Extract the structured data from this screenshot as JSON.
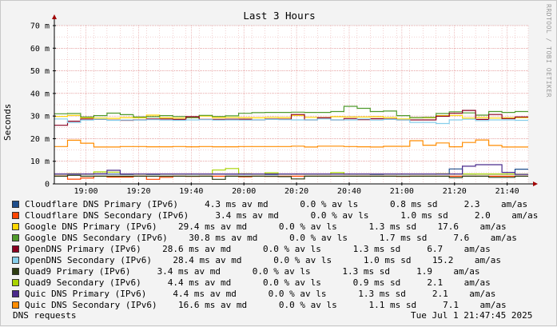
{
  "chart_data": {
    "type": "line",
    "title": "Last 3 Hours",
    "ylabel": "Seconds",
    "watermark": "RRDTOOL / TOBI OETIKER",
    "ylim": [
      0,
      0.07
    ],
    "yticks": [
      {
        "value": 0.07,
        "label": "70 m"
      },
      {
        "value": 0.06,
        "label": "60 m"
      },
      {
        "value": 0.05,
        "label": "50 m"
      },
      {
        "value": 0.04,
        "label": "40 m"
      },
      {
        "value": 0.03,
        "label": "30 m"
      },
      {
        "value": 0.02,
        "label": "20 m"
      },
      {
        "value": 0.01,
        "label": "10 m"
      },
      {
        "value": 0.0,
        "label": "0"
      }
    ],
    "xlim": [
      "18:48",
      "21:48"
    ],
    "xticks": [
      "19:00",
      "19:20",
      "19:40",
      "20:00",
      "20:20",
      "20:40",
      "21:00",
      "21:20",
      "21:40"
    ],
    "grid": true,
    "x": [
      "18:48",
      "18:53",
      "18:58",
      "19:03",
      "19:08",
      "19:13",
      "19:18",
      "19:23",
      "19:28",
      "19:33",
      "19:38",
      "19:43",
      "19:48",
      "19:53",
      "19:58",
      "20:03",
      "20:08",
      "20:13",
      "20:18",
      "20:23",
      "20:28",
      "20:33",
      "20:38",
      "20:43",
      "20:48",
      "20:53",
      "20:58",
      "21:03",
      "21:08",
      "21:13",
      "21:18",
      "21:23",
      "21:28",
      "21:33",
      "21:38",
      "21:43"
    ],
    "series": [
      {
        "name": "Cloudflare DNS Primary (IPv6)",
        "color": "#1f4e8c",
        "values": [
          0.0043,
          0.0043,
          0.0043,
          0.0044,
          0.0043,
          0.0042,
          0.0043,
          0.0042,
          0.0043,
          0.0044,
          0.0043,
          0.0043,
          0.0044,
          0.0043,
          0.0043,
          0.0043,
          0.0042,
          0.0043,
          0.0044,
          0.0043,
          0.0043,
          0.0044,
          0.0043,
          0.0043,
          0.0042,
          0.0043,
          0.0043,
          0.0043,
          0.0043,
          0.0044,
          0.0066,
          0.0043,
          0.0044,
          0.0043,
          0.0043,
          0.0065
        ]
      },
      {
        "name": "Cloudflare DNS Secondary (IPv6)",
        "color": "#ff4500",
        "values": [
          0.0035,
          0.0021,
          0.0026,
          0.0034,
          0.003,
          0.003,
          0.0034,
          0.002,
          0.0029,
          0.0034,
          0.0033,
          0.0034,
          0.0034,
          0.0034,
          0.0031,
          0.0034,
          0.0033,
          0.0034,
          0.0034,
          0.0034,
          0.0034,
          0.0034,
          0.0034,
          0.0034,
          0.0034,
          0.0034,
          0.0033,
          0.0034,
          0.0034,
          0.0034,
          0.0034,
          0.0034,
          0.0034,
          0.0034,
          0.0034,
          0.0034
        ]
      },
      {
        "name": "Google DNS Primary (IPv6)",
        "color": "#ffd700",
        "values": [
          0.0298,
          0.0303,
          0.0292,
          0.0291,
          0.029,
          0.0293,
          0.0292,
          0.0304,
          0.0292,
          0.0291,
          0.0293,
          0.03,
          0.0293,
          0.0294,
          0.0293,
          0.0292,
          0.0294,
          0.0293,
          0.0303,
          0.0294,
          0.0293,
          0.0297,
          0.0296,
          0.0296,
          0.0297,
          0.0293,
          0.0287,
          0.0292,
          0.0292,
          0.0302,
          0.0303,
          0.0291,
          0.0293,
          0.0291,
          0.0292,
          0.0293
        ]
      },
      {
        "name": "Google DNS Secondary (IPv6)",
        "color": "#4f9a2c",
        "values": [
          0.031,
          0.0311,
          0.0296,
          0.0302,
          0.0313,
          0.0306,
          0.0296,
          0.0297,
          0.0302,
          0.0298,
          0.0293,
          0.0303,
          0.0298,
          0.0301,
          0.0312,
          0.0315,
          0.0316,
          0.0316,
          0.0317,
          0.0316,
          0.0316,
          0.032,
          0.0343,
          0.0334,
          0.032,
          0.0322,
          0.0302,
          0.0293,
          0.0294,
          0.0311,
          0.0319,
          0.0314,
          0.0304,
          0.032,
          0.0316,
          0.032
        ]
      },
      {
        "name": "OpenDNS Primary (IPv6)",
        "color": "#8b0020",
        "values": [
          0.0259,
          0.0277,
          0.0287,
          0.0285,
          0.0282,
          0.0281,
          0.0283,
          0.0287,
          0.0287,
          0.0285,
          0.0297,
          0.0285,
          0.0285,
          0.0286,
          0.0286,
          0.0283,
          0.0287,
          0.0286,
          0.0307,
          0.0283,
          0.0292,
          0.0283,
          0.0289,
          0.0284,
          0.0288,
          0.0287,
          0.0283,
          0.0283,
          0.0283,
          0.0299,
          0.0312,
          0.0325,
          0.0285,
          0.0307,
          0.0289,
          0.0296
        ]
      },
      {
        "name": "OpenDNS Secondary (IPv6)",
        "color": "#87ceeb",
        "values": [
          0.0287,
          0.0271,
          0.0282,
          0.0286,
          0.0281,
          0.0282,
          0.0282,
          0.0284,
          0.0282,
          0.0281,
          0.0283,
          0.0284,
          0.0282,
          0.0283,
          0.0282,
          0.0283,
          0.0285,
          0.0284,
          0.0283,
          0.0283,
          0.0287,
          0.0283,
          0.0283,
          0.0287,
          0.0282,
          0.0285,
          0.0283,
          0.0272,
          0.0272,
          0.0267,
          0.0283,
          0.0286,
          0.028,
          0.0283,
          0.0283,
          0.0281
        ]
      },
      {
        "name": "Quad9 Primary (IPv6)",
        "color": "#2e3d12",
        "values": [
          0.0034,
          0.0038,
          0.0034,
          0.0034,
          0.0034,
          0.0034,
          0.0034,
          0.0034,
          0.0034,
          0.0034,
          0.0034,
          0.0034,
          0.002,
          0.0034,
          0.0034,
          0.0034,
          0.0034,
          0.0032,
          0.0022,
          0.0034,
          0.0034,
          0.0034,
          0.0034,
          0.0034,
          0.0034,
          0.0034,
          0.0034,
          0.0034,
          0.0034,
          0.0034,
          0.0028,
          0.0034,
          0.0034,
          0.0029,
          0.0029,
          0.0034
        ]
      },
      {
        "name": "Quad9 Secondary (IPv6)",
        "color": "#a9d400",
        "values": [
          0.0044,
          0.0045,
          0.0044,
          0.0053,
          0.0052,
          0.0044,
          0.0043,
          0.0044,
          0.0044,
          0.0044,
          0.0044,
          0.0044,
          0.0061,
          0.0068,
          0.0045,
          0.0044,
          0.0049,
          0.0044,
          0.0044,
          0.0044,
          0.0044,
          0.005,
          0.0044,
          0.0044,
          0.0044,
          0.0044,
          0.0044,
          0.0044,
          0.0044,
          0.0045,
          0.0044,
          0.0044,
          0.0044,
          0.0044,
          0.0044,
          0.0043
        ]
      },
      {
        "name": "Quic DNS Primary (IPv6)",
        "color": "#4b2a8c",
        "values": [
          0.0044,
          0.0044,
          0.0044,
          0.0045,
          0.006,
          0.0044,
          0.0044,
          0.0044,
          0.0044,
          0.0044,
          0.0044,
          0.0044,
          0.0044,
          0.0044,
          0.0044,
          0.0044,
          0.0044,
          0.0044,
          0.0044,
          0.0044,
          0.0044,
          0.0044,
          0.0044,
          0.0044,
          0.0044,
          0.0044,
          0.0044,
          0.0044,
          0.0044,
          0.0044,
          0.0044,
          0.0078,
          0.0085,
          0.0085,
          0.0051,
          0.0042
        ]
      },
      {
        "name": "Quic DNS Secondary (IPv6)",
        "color": "#ff8c00",
        "values": [
          0.0165,
          0.0193,
          0.018,
          0.0163,
          0.0163,
          0.0165,
          0.0165,
          0.0164,
          0.0164,
          0.0165,
          0.0164,
          0.0165,
          0.0164,
          0.0164,
          0.0165,
          0.0165,
          0.0165,
          0.0165,
          0.0167,
          0.0163,
          0.0167,
          0.0167,
          0.0165,
          0.0164,
          0.0163,
          0.0166,
          0.0166,
          0.0191,
          0.0171,
          0.0181,
          0.0164,
          0.0183,
          0.0194,
          0.017,
          0.0163,
          0.0163
        ]
      }
    ]
  },
  "legend": [
    {
      "text": "Cloudflare DNS Primary (IPv6)     4.3 ms av md      0.0 % av ls      0.8 ms sd     2.3    am/as",
      "color": "#1f4e8c"
    },
    {
      "text": "Cloudflare DNS Secondary (IPv6)     3.4 ms av md      0.0 % av ls      1.0 ms sd     2.0    am/as",
      "color": "#ff4500"
    },
    {
      "text": "Google DNS Primary (IPv6)    29.4 ms av md      0.0 % av ls      1.3 ms sd    17.6    am/as",
      "color": "#ffd700"
    },
    {
      "text": "Google DNS Secondary (IPv6)    30.8 ms av md      0.0 % av ls      1.7 ms sd     7.6    am/as",
      "color": "#4f9a2c"
    },
    {
      "text": "OpenDNS Primary (IPv6)    28.6 ms av md      0.0 % av ls      1.3 ms sd     6.7    am/as",
      "color": "#8b0020"
    },
    {
      "text": "OpenDNS Secondary (IPv6)    28.4 ms av md      0.0 % av ls      1.0 ms sd    15.2    am/as",
      "color": "#87ceeb"
    },
    {
      "text": "Quad9 Primary (IPv6)     3.4 ms av md      0.0 % av ls      1.3 ms sd     1.9    am/as",
      "color": "#2e3d12"
    },
    {
      "text": "Quad9 Secondary (IPv6)     4.4 ms av md      0.0 % av ls      0.9 ms sd     2.1    am/as",
      "color": "#a9d400"
    },
    {
      "text": "Quic DNS Primary (IPv6)     4.4 ms av md      0.0 % av ls      1.3 ms sd     2.1    am/as",
      "color": "#4b2a8c"
    },
    {
      "text": "Quic DNS Secondary (IPv6)    16.6 ms av md      0.0 % av ls      1.1 ms sd     7.1    am/as",
      "color": "#ff8c00"
    }
  ],
  "footer": {
    "left": "DNS requests",
    "right": "Tue Jul  1 21:47:45 2025"
  }
}
